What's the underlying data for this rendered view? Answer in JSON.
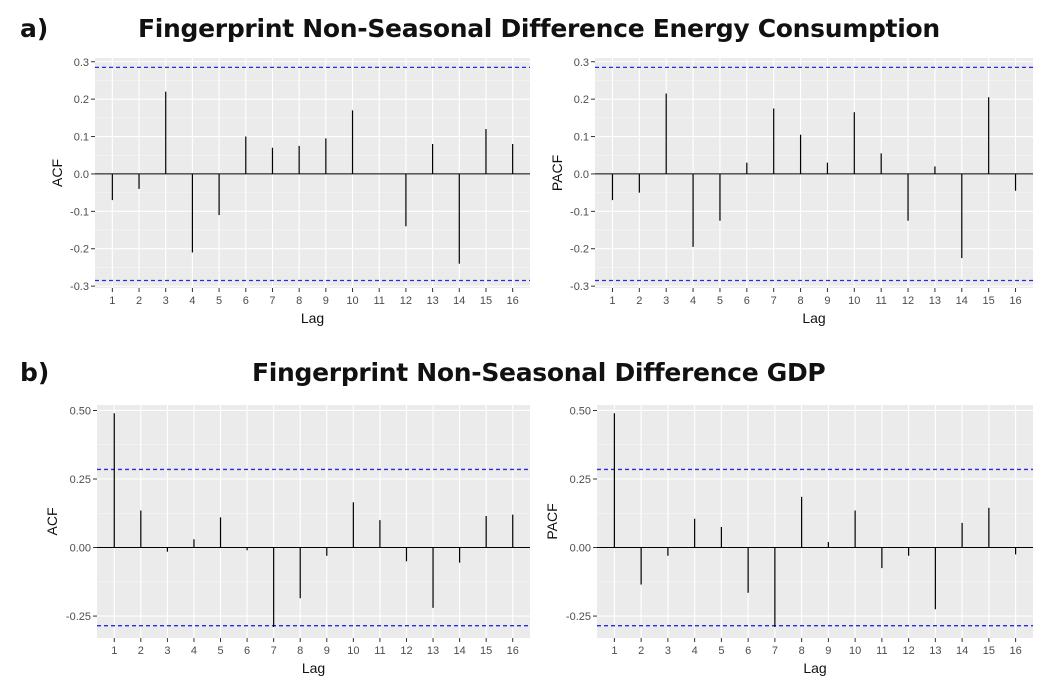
{
  "section_a": {
    "letter": "a)",
    "title": "Fingerprint Non-Seasonal Difference Energy Consumption"
  },
  "section_b": {
    "letter": "b)",
    "title": "Fingerprint Non-Seasonal Difference GDP"
  },
  "colors": {
    "bar": "#000000",
    "confidence_line": "#2b2bdb",
    "panel_background": "#ebebeb"
  },
  "chart_data": [
    {
      "type": "bar",
      "id": "energy-acf",
      "xlabel": "Lag",
      "ylabel": "ACF",
      "x": [
        1,
        2,
        3,
        4,
        5,
        6,
        7,
        8,
        9,
        10,
        11,
        12,
        13,
        14,
        15,
        16
      ],
      "values": [
        -0.07,
        -0.04,
        0.22,
        -0.21,
        -0.11,
        0.1,
        0.07,
        0.075,
        0.095,
        0.17,
        0.0,
        -0.14,
        0.08,
        -0.24,
        0.12,
        0.08
      ],
      "confidence_bound": 0.285,
      "ylim": [
        -0.305,
        0.31
      ],
      "yticks": [
        -0.3,
        -0.2,
        -0.1,
        0.0,
        0.1,
        0.2,
        0.3
      ],
      "ytick_labels": [
        "-0.3",
        "-0.2",
        "-0.1",
        "0.0",
        "0.1",
        "0.2",
        "0.3"
      ],
      "grid": true
    },
    {
      "type": "bar",
      "id": "energy-pacf",
      "xlabel": "Lag",
      "ylabel": "PACF",
      "x": [
        1,
        2,
        3,
        4,
        5,
        6,
        7,
        8,
        9,
        10,
        11,
        12,
        13,
        14,
        15,
        16
      ],
      "values": [
        -0.07,
        -0.05,
        0.215,
        -0.195,
        -0.125,
        0.03,
        0.175,
        0.105,
        0.03,
        0.165,
        0.055,
        -0.125,
        0.02,
        -0.225,
        0.205,
        -0.045
      ],
      "confidence_bound": 0.285,
      "ylim": [
        -0.305,
        0.31
      ],
      "yticks": [
        -0.3,
        -0.2,
        -0.1,
        0.0,
        0.1,
        0.2,
        0.3
      ],
      "ytick_labels": [
        "-0.3",
        "-0.2",
        "-0.1",
        "0.0",
        "0.1",
        "0.2",
        "0.3"
      ],
      "grid": true
    },
    {
      "type": "bar",
      "id": "gdp-acf",
      "xlabel": "Lag",
      "ylabel": "ACF",
      "x": [
        1,
        2,
        3,
        4,
        5,
        6,
        7,
        8,
        9,
        10,
        11,
        12,
        13,
        14,
        15,
        16
      ],
      "values": [
        0.49,
        0.135,
        -0.015,
        0.03,
        0.11,
        -0.01,
        -0.29,
        -0.185,
        -0.03,
        0.165,
        0.1,
        -0.05,
        -0.22,
        -0.055,
        0.115,
        0.12
      ],
      "confidence_bound": 0.285,
      "ylim": [
        -0.33,
        0.52
      ],
      "yticks": [
        -0.25,
        0.0,
        0.25,
        0.5
      ],
      "ytick_labels": [
        "-0.25",
        "0.00",
        "0.25",
        "0.50"
      ],
      "grid": true
    },
    {
      "type": "bar",
      "id": "gdp-pacf",
      "xlabel": "Lag",
      "ylabel": "PACF",
      "x": [
        1,
        2,
        3,
        4,
        5,
        6,
        7,
        8,
        9,
        10,
        11,
        12,
        13,
        14,
        15,
        16
      ],
      "values": [
        0.49,
        -0.135,
        -0.03,
        0.105,
        0.075,
        -0.165,
        -0.29,
        0.185,
        0.02,
        0.135,
        -0.075,
        -0.03,
        -0.225,
        0.09,
        0.145,
        -0.025
      ],
      "confidence_bound": 0.285,
      "ylim": [
        -0.33,
        0.52
      ],
      "yticks": [
        -0.25,
        0.0,
        0.25,
        0.5
      ],
      "ytick_labels": [
        "-0.25",
        "0.00",
        "0.25",
        "0.50"
      ],
      "grid": true
    }
  ]
}
